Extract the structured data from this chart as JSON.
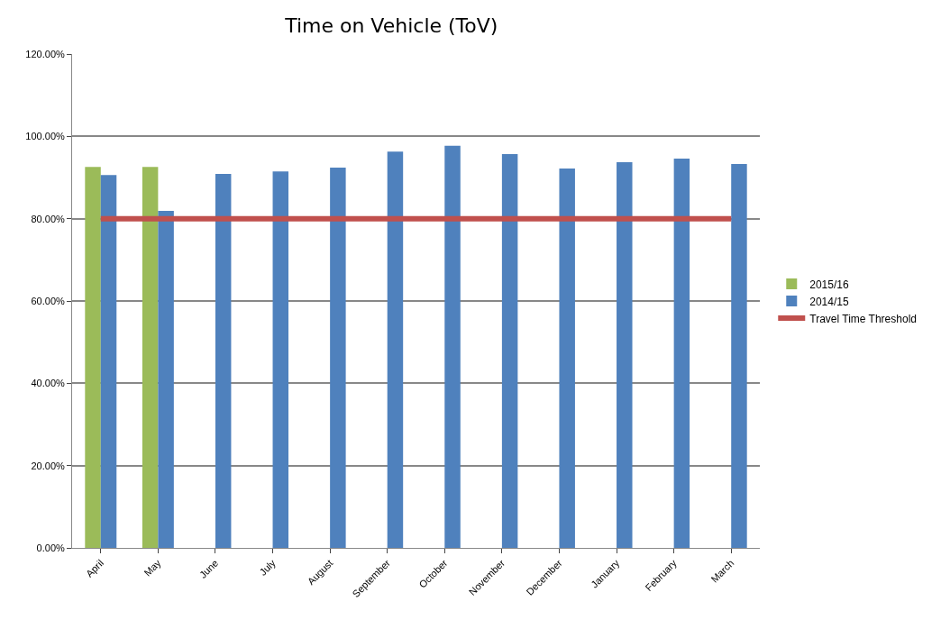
{
  "chart_data": {
    "type": "bar",
    "title": "Time on Vehicle (ToV)",
    "categories": [
      "April",
      "May",
      "June",
      "July",
      "August",
      "September",
      "October",
      "November",
      "December",
      "January",
      "February",
      "March"
    ],
    "series": [
      {
        "name": "2015/16",
        "color": "#9bbb59",
        "values": [
          92.6,
          92.6,
          null,
          null,
          null,
          null,
          null,
          null,
          null,
          null,
          null,
          null
        ]
      },
      {
        "name": "2014/15",
        "color": "#4f81bd",
        "values": [
          90.6,
          81.9,
          90.9,
          91.5,
          92.4,
          96.3,
          97.7,
          95.7,
          92.2,
          93.7,
          94.6,
          93.3
        ]
      },
      {
        "name": "Travel Time Threshold",
        "type": "line",
        "color": "#c0504d",
        "values": [
          80,
          80,
          80,
          80,
          80,
          80,
          80,
          80,
          80,
          80,
          80,
          80
        ]
      }
    ],
    "ylim": [
      0,
      120
    ],
    "yticks": [
      {
        "value": 0,
        "label": "0.00%"
      },
      {
        "value": 20,
        "label": "20.00%"
      },
      {
        "value": 40,
        "label": "40.00%"
      },
      {
        "value": 60,
        "label": "60.00%"
      },
      {
        "value": 80,
        "label": "80.00%"
      },
      {
        "value": 100,
        "label": "100.00%"
      },
      {
        "value": 120,
        "label": "120.00%"
      }
    ],
    "grid": "y",
    "legend": "right",
    "marker": "none",
    "line_style": "solid"
  }
}
